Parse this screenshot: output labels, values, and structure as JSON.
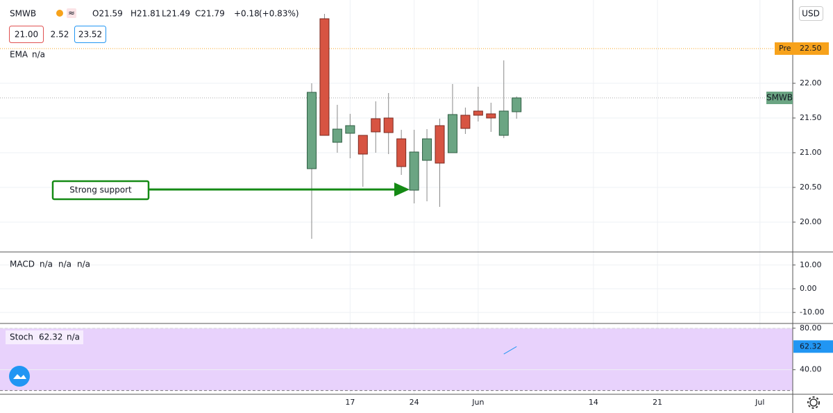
{
  "chart_data": [
    {
      "type": "candlestick",
      "title": "SMWB",
      "header": {
        "open": {
          "value": 21.59,
          "label": "O21.59"
        },
        "high": {
          "value": 21.81,
          "label": "H21.81"
        },
        "low": {
          "value": 21.49,
          "label": "L21.49"
        },
        "close": {
          "value": 21.79,
          "label": "C21.79"
        },
        "change": {
          "value": 0.18,
          "label": "+0.18"
        },
        "change_pct": {
          "value": 0.83,
          "label": "(+0.83%)"
        }
      },
      "bid": {
        "value": 21,
        "label": "21.00"
      },
      "spread": 2.52,
      "ask": 23.52,
      "currency": "USD",
      "indicator": "EMA",
      "indicator_value": "n/a",
      "premarket": {
        "label": "Pre",
        "price": {
          "value": 22.5,
          "label": "22.50"
        },
        "color": "#f7a21b"
      },
      "annotation": "Strong support",
      "annotation_color": "#148a14",
      "categories": [
        null,
        null,
        null,
        "17",
        null,
        null,
        null,
        null,
        "24",
        null,
        null,
        null,
        null,
        "Jun",
        null,
        null,
        null,
        null,
        null,
        null,
        null,
        null,
        "14",
        null,
        null,
        null,
        null,
        "21",
        null,
        null,
        null,
        null,
        null,
        null,
        null,
        "Jul"
      ],
      "open": [
        20.77,
        22.93,
        21.15,
        21.28,
        21.25,
        21.49,
        21.5,
        21.2,
        20.46,
        20.89,
        21.39,
        21.0,
        21.54,
        21.6,
        21.56,
        21.25,
        21.59,
        null,
        null,
        null,
        null,
        null,
        null,
        null,
        null,
        null,
        null,
        null,
        null,
        null,
        null,
        null,
        null,
        null,
        null,
        null
      ],
      "high": [
        22.0,
        23.0,
        21.69,
        21.56,
        21.25,
        21.74,
        21.86,
        21.33,
        21.33,
        21.34,
        21.49,
        21.99,
        21.65,
        21.95,
        21.72,
        22.33,
        21.81,
        null,
        null,
        null,
        null,
        null,
        null,
        null,
        null,
        null,
        null,
        null,
        null,
        null,
        null,
        null,
        null,
        null,
        null,
        null
      ],
      "low": [
        19.76,
        21.25,
        21.0,
        20.92,
        20.51,
        21.0,
        20.98,
        20.68,
        20.27,
        20.3,
        20.22,
        21.0,
        21.27,
        21.45,
        21.3,
        21.21,
        21.49,
        null,
        null,
        null,
        null,
        null,
        null,
        null,
        null,
        null,
        null,
        null,
        null,
        null,
        null,
        null,
        null,
        null,
        null,
        null
      ],
      "close": [
        21.87,
        21.25,
        21.34,
        21.39,
        20.98,
        21.3,
        21.29,
        20.8,
        21.01,
        21.2,
        20.85,
        21.55,
        21.35,
        21.54,
        21.5,
        21.6,
        21.79,
        null,
        null,
        null,
        null,
        null,
        null,
        null,
        null,
        null,
        null,
        null,
        null,
        null,
        null,
        null,
        null,
        null,
        null,
        null
      ],
      "up_color": "#6ba583",
      "down_color": "#d75442",
      "ylim": [
        19.58,
        23.2
      ],
      "yticks": [
        {
          "value": 20,
          "label": "20.00"
        },
        {
          "value": 20.5,
          "label": "20.50"
        },
        {
          "value": 21,
          "label": "21.00"
        },
        {
          "value": 21.5,
          "label": "21.50"
        },
        {
          "value": 22,
          "label": "22.00"
        }
      ],
      "grid": true
    },
    {
      "type": "macd",
      "title": "MACD",
      "value_texts": [
        "n/a",
        "n/a",
        "n/a"
      ],
      "ylim": [
        -14.35,
        15.5
      ],
      "yticks": [
        {
          "value": 10,
          "label": "10.00"
        },
        {
          "value": 0,
          "label": "0.00"
        },
        {
          "value": -10,
          "label": "-10.00"
        }
      ],
      "grid": true
    },
    {
      "type": "stochastic",
      "title": "Stoch",
      "value_text": "n/a",
      "values": [
        null,
        null,
        null,
        null,
        null,
        null,
        null,
        null,
        null,
        null,
        null,
        null,
        null,
        null,
        null,
        55.1,
        62.32,
        null,
        null,
        null,
        null,
        null,
        null,
        null,
        null,
        null,
        null,
        null,
        null,
        null,
        null,
        null,
        null,
        null,
        null,
        null
      ],
      "color": "#2196f3",
      "band": [
        20,
        80
      ],
      "band_color": "#e8d2fc",
      "ylim": [
        17.05,
        83.9
      ],
      "yticks": [
        {
          "value": 80,
          "label": "80.00"
        },
        {
          "value": 40,
          "label": "40.00"
        }
      ],
      "grid": true
    }
  ]
}
